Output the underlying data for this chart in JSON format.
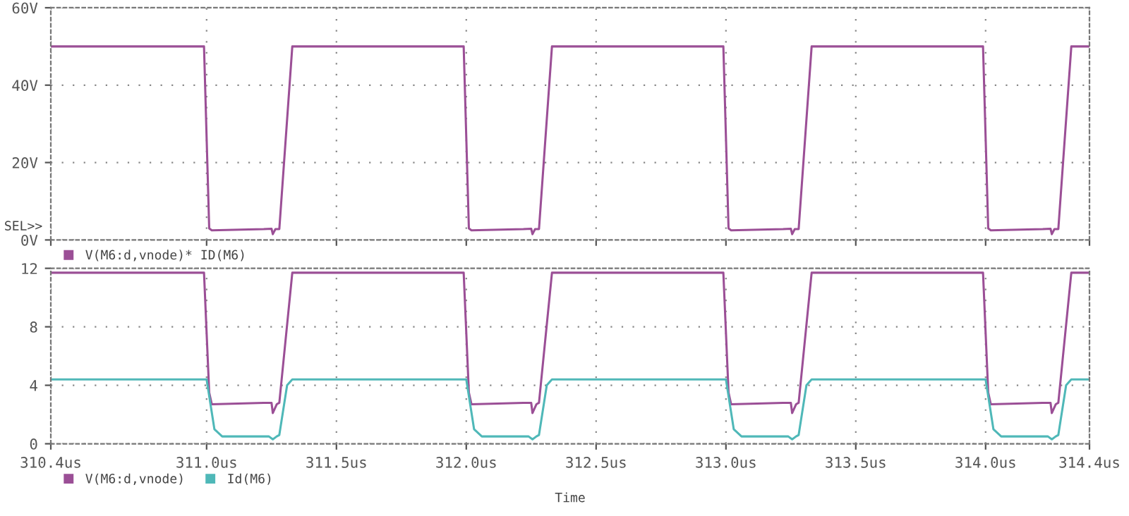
{
  "chart_data": [
    {
      "type": "line",
      "xlim": [
        310.4,
        314.4
      ],
      "ylim": [
        0,
        60
      ],
      "yticks": [
        {
          "value": 0,
          "label": "0V"
        },
        {
          "value": 20,
          "label": "20V"
        },
        {
          "value": 40,
          "label": "40V"
        },
        {
          "value": 60,
          "label": "60V"
        }
      ],
      "xticks": [
        {
          "value": 310.4,
          "label": null
        },
        {
          "value": 311.0,
          "label": null
        },
        {
          "value": 311.5,
          "label": null
        },
        {
          "value": 312.0,
          "label": null
        },
        {
          "value": 312.5,
          "label": null
        },
        {
          "value": 313.0,
          "label": null
        },
        {
          "value": 313.5,
          "label": null
        },
        {
          "value": 314.0,
          "label": null
        },
        {
          "value": 314.4,
          "label": null
        }
      ],
      "tick_labels": "y",
      "grid": true,
      "legend": "bottom",
      "line_style": "solid",
      "annotations": [
        "SEL>>"
      ],
      "series": [
        {
          "name": "V(M6:d,vnode)* ID(M6)",
          "color": "#9b4f96",
          "x": [
            310.4,
            310.99,
            311.01,
            311.02,
            311.22,
            311.25,
            311.255,
            311.265,
            311.28,
            311.33,
            311.99,
            312.01,
            312.02,
            312.22,
            312.25,
            312.255,
            312.265,
            312.28,
            312.33,
            312.99,
            313.01,
            313.02,
            313.22,
            313.25,
            313.255,
            313.265,
            313.28,
            313.33,
            313.99,
            314.01,
            314.02,
            314.22,
            314.25,
            314.255,
            314.265,
            314.28,
            314.33,
            314.4
          ],
          "values": [
            50,
            50,
            3,
            2.5,
            2.8,
            2.9,
            1.5,
            2.8,
            2.8,
            50,
            50,
            3,
            2.5,
            2.8,
            2.9,
            1.5,
            2.8,
            2.8,
            50,
            50,
            3,
            2.5,
            2.8,
            2.9,
            1.5,
            2.8,
            2.8,
            50,
            50,
            3,
            2.5,
            2.8,
            2.9,
            1.5,
            2.8,
            2.8,
            50,
            50
          ]
        }
      ]
    },
    {
      "type": "line",
      "xlim": [
        310.4,
        314.4
      ],
      "ylim": [
        0,
        12
      ],
      "yticks": [
        0,
        4,
        8,
        12
      ],
      "xticks": [
        {
          "value": 310.4,
          "label": "310.4us"
        },
        {
          "value": 311.0,
          "label": "311.0us"
        },
        {
          "value": 311.5,
          "label": "311.5us"
        },
        {
          "value": 312.0,
          "label": "312.0us"
        },
        {
          "value": 312.5,
          "label": "312.5us"
        },
        {
          "value": 313.0,
          "label": "313.0us"
        },
        {
          "value": 313.5,
          "label": "313.5us"
        },
        {
          "value": 314.0,
          "label": "314.0us"
        },
        {
          "value": 314.4,
          "label": "314.4us"
        }
      ],
      "xlabel": "Time",
      "grid": true,
      "legend": "bottom",
      "line_style": "solid",
      "series": [
        {
          "name": "V(M6:d,vnode)",
          "color": "#9b4f96",
          "x": [
            310.4,
            310.99,
            311.01,
            311.02,
            311.22,
            311.25,
            311.255,
            311.27,
            311.28,
            311.33,
            311.99,
            312.01,
            312.02,
            312.22,
            312.25,
            312.255,
            312.27,
            312.28,
            312.33,
            312.99,
            313.01,
            313.02,
            313.22,
            313.25,
            313.255,
            313.27,
            313.28,
            313.33,
            313.99,
            314.01,
            314.02,
            314.22,
            314.25,
            314.255,
            314.27,
            314.28,
            314.33,
            314.4
          ],
          "values": [
            11.7,
            11.7,
            3.5,
            2.7,
            2.8,
            2.8,
            2.1,
            2.7,
            2.8,
            11.7,
            11.7,
            3.5,
            2.7,
            2.8,
            2.8,
            2.1,
            2.7,
            2.8,
            11.7,
            11.7,
            3.5,
            2.7,
            2.8,
            2.8,
            2.1,
            2.7,
            2.8,
            11.7,
            11.7,
            3.5,
            2.7,
            2.8,
            2.8,
            2.1,
            2.7,
            2.8,
            11.7,
            11.7
          ]
        },
        {
          "name": "Id(M6)",
          "color": "#4fb8b8",
          "x": [
            310.4,
            311.0,
            311.03,
            311.06,
            311.24,
            311.255,
            311.27,
            311.28,
            311.31,
            311.33,
            312.0,
            312.03,
            312.06,
            312.24,
            312.255,
            312.27,
            312.28,
            312.31,
            312.33,
            313.0,
            313.03,
            313.06,
            313.24,
            313.255,
            313.27,
            313.28,
            313.31,
            313.33,
            314.0,
            314.03,
            314.06,
            314.24,
            314.255,
            314.27,
            314.28,
            314.31,
            314.33,
            314.4
          ],
          "values": [
            4.4,
            4.4,
            1.0,
            0.5,
            0.5,
            0.3,
            0.5,
            0.6,
            4.0,
            4.4,
            4.4,
            1.0,
            0.5,
            0.5,
            0.3,
            0.5,
            0.6,
            4.0,
            4.4,
            4.4,
            1.0,
            0.5,
            0.5,
            0.3,
            0.5,
            0.6,
            4.0,
            4.4,
            4.4,
            1.0,
            0.5,
            0.5,
            0.3,
            0.5,
            0.6,
            4.0,
            4.4,
            4.4
          ]
        }
      ]
    }
  ]
}
